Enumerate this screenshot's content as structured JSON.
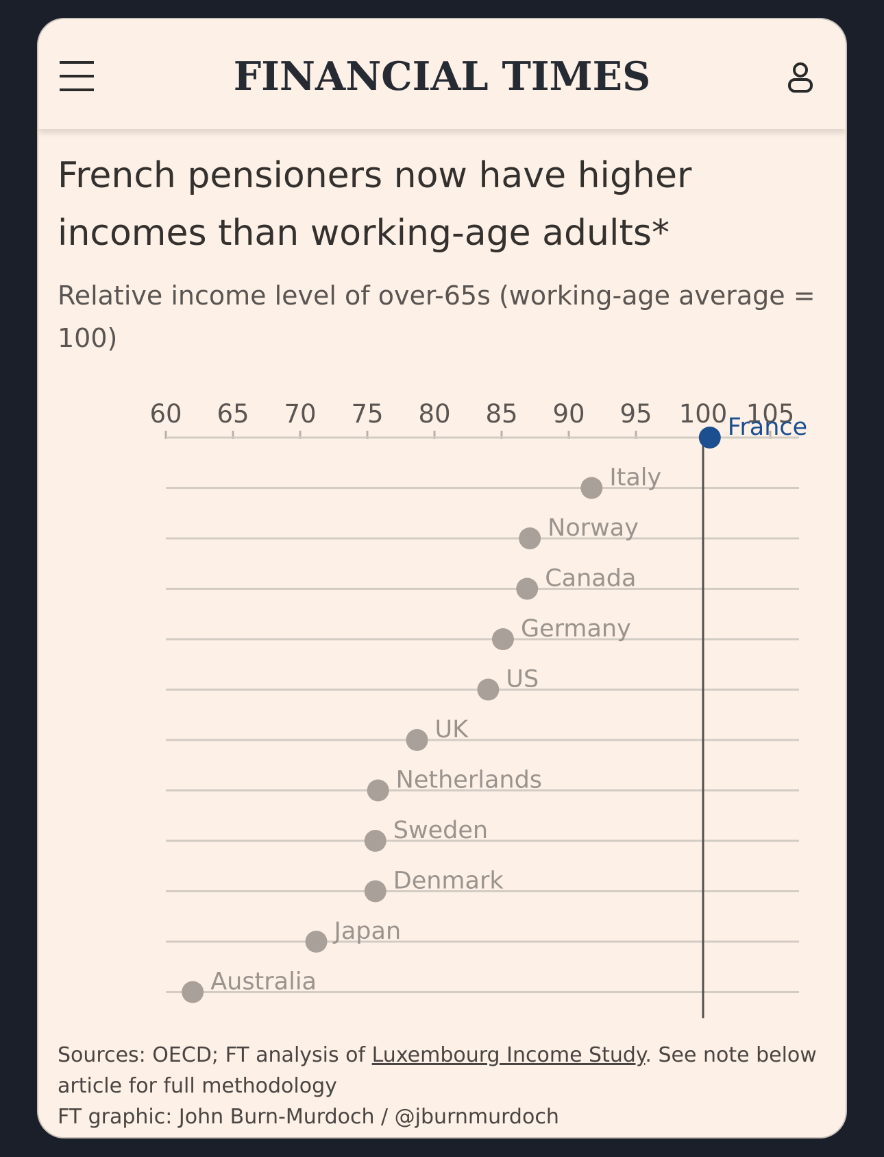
{
  "masthead": {
    "brand": "FINANCIAL TIMES",
    "menu_icon": "hamburger-menu-icon",
    "user_icon": "user-account-icon"
  },
  "title": "French pensioners now have higher incomes than working-age adults*",
  "subtitle": "Relative income level of over-65s (working-age average = 100)",
  "chart_data": {
    "type": "scatter",
    "title": "French pensioners now have higher incomes than working-age adults*",
    "subtitle": "Relative income level of over-65s (working-age average = 100)",
    "xlim": [
      60,
      107
    ],
    "x_ticks": [
      60,
      65,
      70,
      75,
      80,
      85,
      90,
      95,
      100,
      105
    ],
    "reference_line": 100,
    "highlight_color": "#1c4f8f",
    "point_color": "#a8a099",
    "points": [
      {
        "country": "France",
        "value": 100.5,
        "highlight": true
      },
      {
        "country": "Italy",
        "value": 91.7
      },
      {
        "country": "Norway",
        "value": 87.1
      },
      {
        "country": "Canada",
        "value": 86.9
      },
      {
        "country": "Germany",
        "value": 85.1
      },
      {
        "country": "US",
        "value": 84.0
      },
      {
        "country": "UK",
        "value": 78.7
      },
      {
        "country": "Netherlands",
        "value": 75.8
      },
      {
        "country": "Sweden",
        "value": 75.6
      },
      {
        "country": "Denmark",
        "value": 75.6
      },
      {
        "country": "Japan",
        "value": 71.2
      },
      {
        "country": "Australia",
        "value": 62.0
      }
    ]
  },
  "footer": {
    "sources_prefix": "Sources: OECD; FT analysis of ",
    "sources_link": "Luxembourg Income Study",
    "sources_suffix": ". See note below article for full methodology",
    "credit": "FT graphic: John Burn-Murdoch / @jburnmurdoch"
  }
}
